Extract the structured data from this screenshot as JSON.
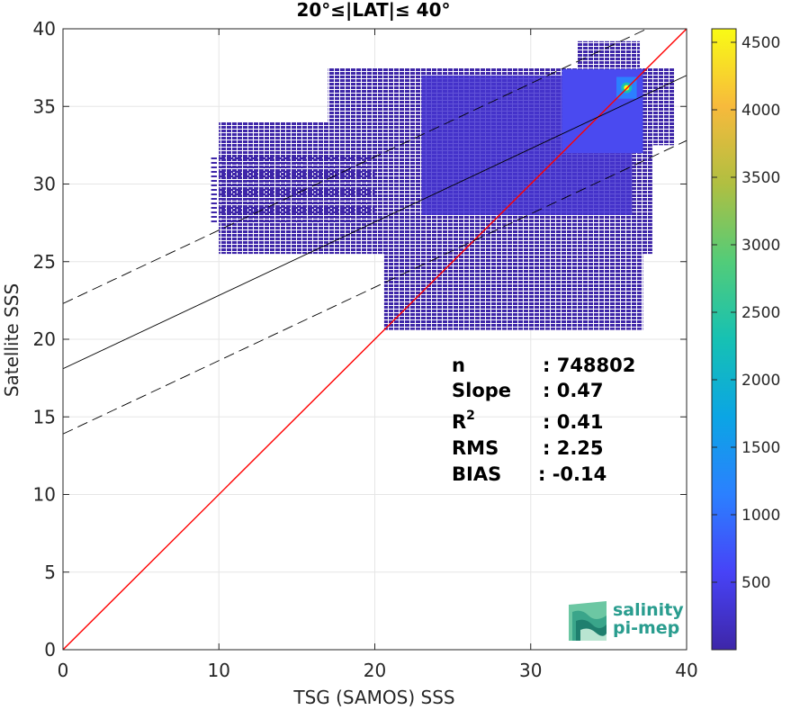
{
  "chart_data": {
    "type": "heatmap",
    "title": "20°≤|LAT|≤ 40°",
    "xlabel": "TSG (SAMOS) SSS",
    "ylabel": "Satellite SSS",
    "xlim": [
      0,
      40
    ],
    "ylim": [
      0,
      40
    ],
    "xticks": [
      0,
      10,
      20,
      30,
      40
    ],
    "yticks": [
      0,
      5,
      10,
      15,
      20,
      25,
      30,
      35,
      40
    ],
    "grid": true,
    "colorbar": {
      "colormap": "parula",
      "range": [
        0,
        4600
      ],
      "ticks": [
        500,
        1000,
        1500,
        2000,
        2500,
        3000,
        3500,
        4000,
        4500
      ],
      "colors": [
        "#3e26a8",
        "#4743f7",
        "#2b80ff",
        "#0ba5e4",
        "#16c1b3",
        "#52cc79",
        "#b0bf41",
        "#f7ba3c",
        "#f9fb15"
      ]
    },
    "density_regions": [
      {
        "x": [
          20.6,
          37.2
        ],
        "y": [
          20.6,
          25.5
        ],
        "level": "low"
      },
      {
        "x": [
          10.0,
          37.8
        ],
        "y": [
          25.5,
          34.0
        ],
        "level": "low"
      },
      {
        "x": [
          17.0,
          39.2
        ],
        "y": [
          32.5,
          37.5
        ],
        "level": "low"
      },
      {
        "x": [
          33.0,
          37.0
        ],
        "y": [
          37.0,
          39.2
        ],
        "level": "low"
      },
      {
        "x": [
          9.5,
          20.0
        ],
        "y": [
          27.4,
          31.8
        ],
        "level": "sparse"
      },
      {
        "x": [
          23.0,
          36.5
        ],
        "y": [
          28.0,
          37.0
        ],
        "level": "medium"
      },
      {
        "x": [
          32.0,
          37.2
        ],
        "y": [
          32.0,
          37.4
        ],
        "level": "high"
      },
      {
        "x": [
          35.5,
          36.8
        ],
        "y": [
          35.5,
          36.9
        ],
        "level": "peak"
      }
    ],
    "series": [
      {
        "name": "1:1",
        "style": "red-solid",
        "x": [
          0,
          40
        ],
        "y": [
          0,
          40
        ]
      },
      {
        "name": "fit",
        "style": "black-solid",
        "x": [
          0,
          40
        ],
        "y": [
          18.1,
          37.0
        ]
      },
      {
        "name": "fit+",
        "style": "black-dashed",
        "x": [
          0,
          40
        ],
        "y": [
          22.3,
          41.2
        ]
      },
      {
        "name": "fit-",
        "style": "black-dashed",
        "x": [
          0,
          40
        ],
        "y": [
          13.9,
          32.8
        ]
      }
    ],
    "stats": [
      {
        "label": "n",
        "value": ": 748802"
      },
      {
        "label": "Slope",
        "value": ": 0.47"
      },
      {
        "label": "R2",
        "value": ": 0.41"
      },
      {
        "label": "RMS",
        "value": ": 2.25"
      },
      {
        "label": "BIAS",
        "value": ": -0.14"
      }
    ]
  },
  "logo": {
    "line1": "salinity",
    "line2": "pi-mep"
  }
}
